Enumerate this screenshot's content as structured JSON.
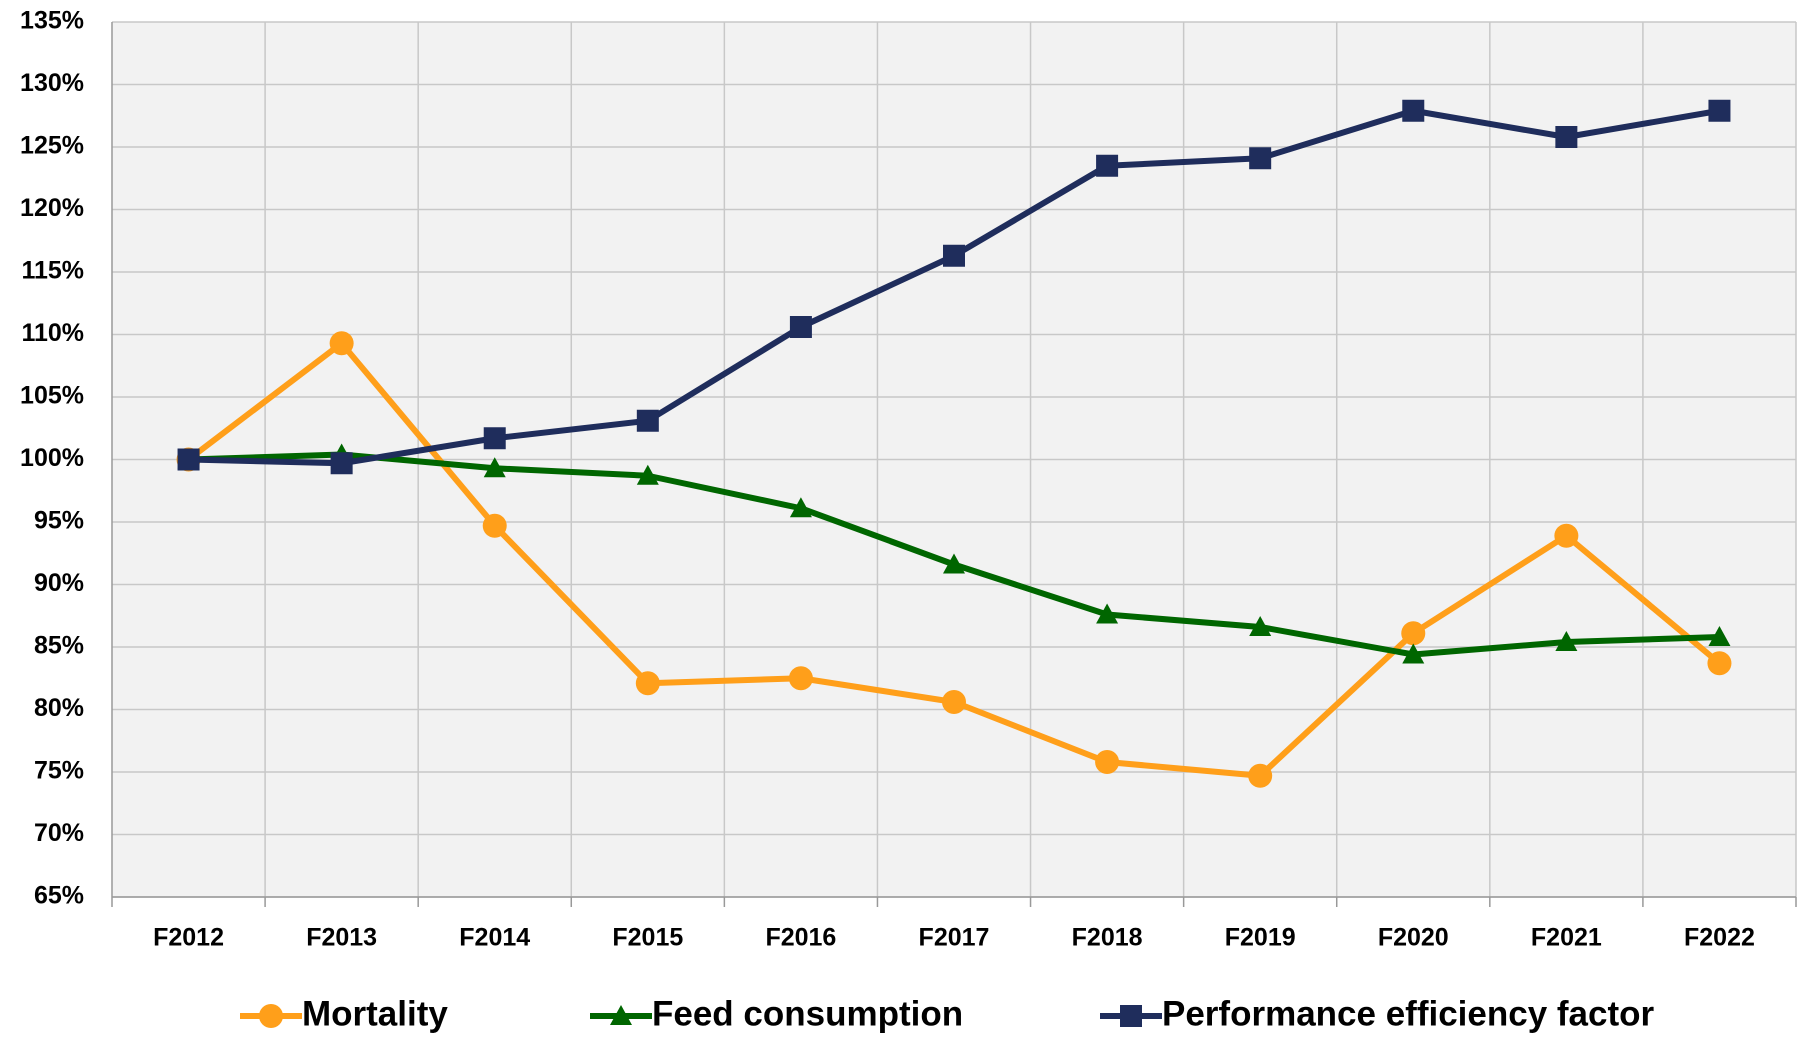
{
  "chart_data": {
    "type": "line",
    "categories": [
      "F2012",
      "F2013",
      "F2014",
      "F2015",
      "F2016",
      "F2017",
      "F2018",
      "F2019",
      "F2020",
      "F2021",
      "F2022"
    ],
    "series": [
      {
        "name": "Mortality",
        "color": "#ff9f1a",
        "marker": "circle",
        "values": [
          100,
          109.3,
          94.7,
          82.1,
          82.5,
          80.6,
          75.8,
          74.7,
          86.1,
          93.9,
          83.7
        ]
      },
      {
        "name": "Feed consumption",
        "color": "#006600",
        "marker": "triangle",
        "values": [
          100,
          100.4,
          99.3,
          98.7,
          96.1,
          91.6,
          87.6,
          86.6,
          84.4,
          85.4,
          85.8
        ]
      },
      {
        "name": "Performance efficiency factor",
        "color": "#1f2d5c",
        "marker": "square",
        "values": [
          100,
          99.7,
          101.7,
          103.1,
          110.6,
          116.3,
          123.5,
          124.1,
          127.9,
          125.8,
          127.9
        ]
      }
    ],
    "ylim": [
      65,
      135
    ],
    "yticks": [
      {
        "value": 65,
        "label": "65%"
      },
      {
        "value": 70,
        "label": "70%"
      },
      {
        "value": 75,
        "label": "75%"
      },
      {
        "value": 80,
        "label": "80%"
      },
      {
        "value": 85,
        "label": "85%"
      },
      {
        "value": 90,
        "label": "90%"
      },
      {
        "value": 95,
        "label": "95%"
      },
      {
        "value": 100,
        "label": "100%"
      },
      {
        "value": 105,
        "label": "105%"
      },
      {
        "value": 110,
        "label": "110%"
      },
      {
        "value": 115,
        "label": "115%"
      },
      {
        "value": 120,
        "label": "120%"
      },
      {
        "value": 125,
        "label": "125%"
      },
      {
        "value": 130,
        "label": "130%"
      },
      {
        "value": 135,
        "label": "135%"
      }
    ],
    "grid": true,
    "legend": "bottom"
  }
}
